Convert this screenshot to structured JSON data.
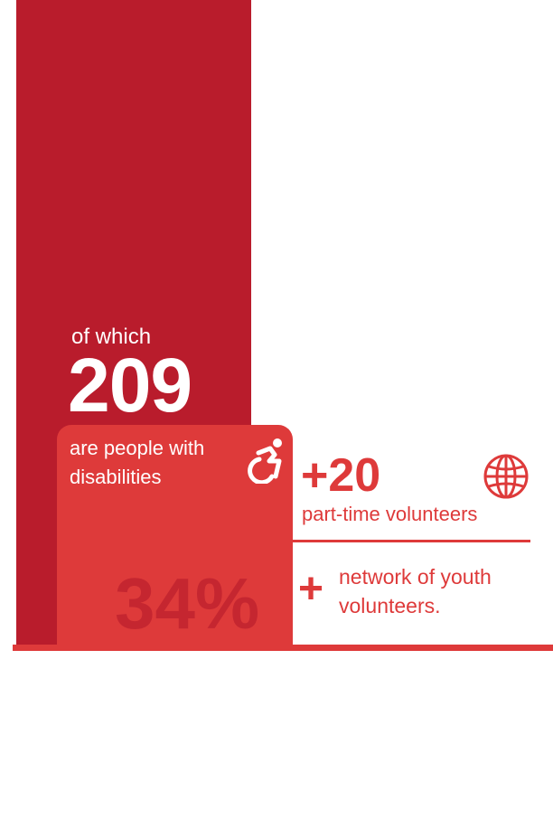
{
  "stats": {
    "of_which": "of which",
    "count": "209",
    "disabilities_line1": "are people with",
    "disabilities_line2": "disabilities",
    "percent": "34%",
    "volunteers_count": "+20",
    "volunteers_label": "part-time volunteers",
    "plus_sign": "+",
    "network_line1": "network of youth",
    "network_line2": "volunteers."
  },
  "icons": {
    "accessibility": "accessibility-icon",
    "globe": "globe-icon"
  },
  "colors": {
    "dark_red": "#b91c2c",
    "light_red": "#de3a3a",
    "white": "#ffffff"
  }
}
